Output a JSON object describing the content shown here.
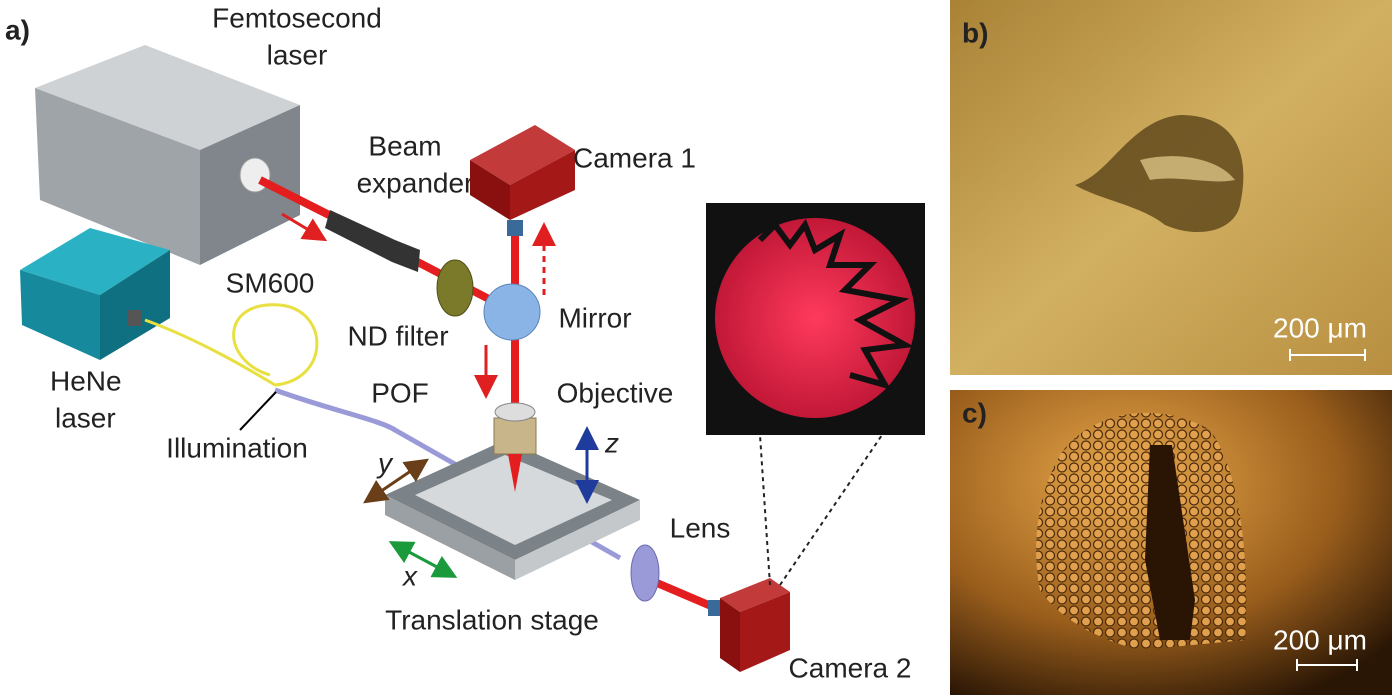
{
  "panels": {
    "a": {
      "label": "a)",
      "femtosecond_laser": [
        "Femtosecond",
        "laser"
      ],
      "beam_expander": [
        "Beam",
        "expander"
      ],
      "camera_1": "Camera 1",
      "sm600": "SM600",
      "nd_filter": "ND filter",
      "mirror": "Mirror",
      "hene_laser": [
        "HeNe",
        "laser"
      ],
      "pof": "POF",
      "objective": "Objective",
      "illumination": "Illumination",
      "axis_z": "z",
      "axis_y": "y",
      "axis_x": "x",
      "lens": "Lens",
      "translation_stage": "Translation stage",
      "camera_2": "Camera 2"
    },
    "b": {
      "label": "b)",
      "scale_bar": "200 μm"
    },
    "c": {
      "label": "c)",
      "scale_bar": "200 μm"
    }
  }
}
